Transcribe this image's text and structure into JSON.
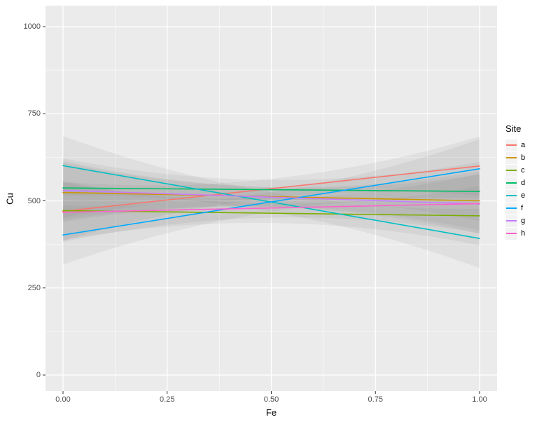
{
  "chart_data": {
    "type": "line",
    "title": "",
    "xlabel": "Fe",
    "ylabel": "Cu",
    "legend_title": "Site",
    "legend_position": "right",
    "xlim": [
      0,
      1
    ],
    "ylim": [
      0,
      1000
    ],
    "x_ticks": [
      "0.00",
      "0.25",
      "0.50",
      "0.75",
      "1.00"
    ],
    "x_tick_values": [
      0,
      0.25,
      0.5,
      0.75,
      1
    ],
    "y_ticks": [
      "0",
      "250",
      "500",
      "750",
      "1000"
    ],
    "y_tick_values": [
      0,
      250,
      500,
      750,
      1000
    ],
    "grid": "on",
    "panel_background": "#EBEBEB",
    "grid_color": "#FFFFFF",
    "tick_mark_color": "#333333",
    "tick_label_color": "#4D4D4D",
    "ribbon_color": "#737373",
    "ribbon_opacity": 0.09,
    "ci_half_width_ends": 85,
    "ci_half_width_mid": 28,
    "series": [
      {
        "name": "a",
        "color": "#F8766D",
        "x": [
          0,
          1
        ],
        "y": [
          470,
          600
        ]
      },
      {
        "name": "b",
        "color": "#CD9600",
        "x": [
          0,
          1
        ],
        "y": [
          524,
          500
        ]
      },
      {
        "name": "c",
        "color": "#7CAE00",
        "x": [
          0,
          1
        ],
        "y": [
          472,
          457
        ]
      },
      {
        "name": "d",
        "color": "#00BE67",
        "x": [
          0,
          1
        ],
        "y": [
          537,
          527
        ]
      },
      {
        "name": "e",
        "color": "#00BFC4",
        "x": [
          0,
          1
        ],
        "y": [
          601,
          392
        ]
      },
      {
        "name": "f",
        "color": "#00A9FF",
        "x": [
          0,
          1
        ],
        "y": [
          402,
          592
        ]
      },
      {
        "name": "g",
        "color": "#C77CFF",
        "x": [
          0,
          1
        ],
        "y": [
          530,
          491
        ]
      },
      {
        "name": "h",
        "color": "#FF61CC",
        "x": [
          0,
          1
        ],
        "y": [
          467,
          492
        ]
      }
    ]
  }
}
